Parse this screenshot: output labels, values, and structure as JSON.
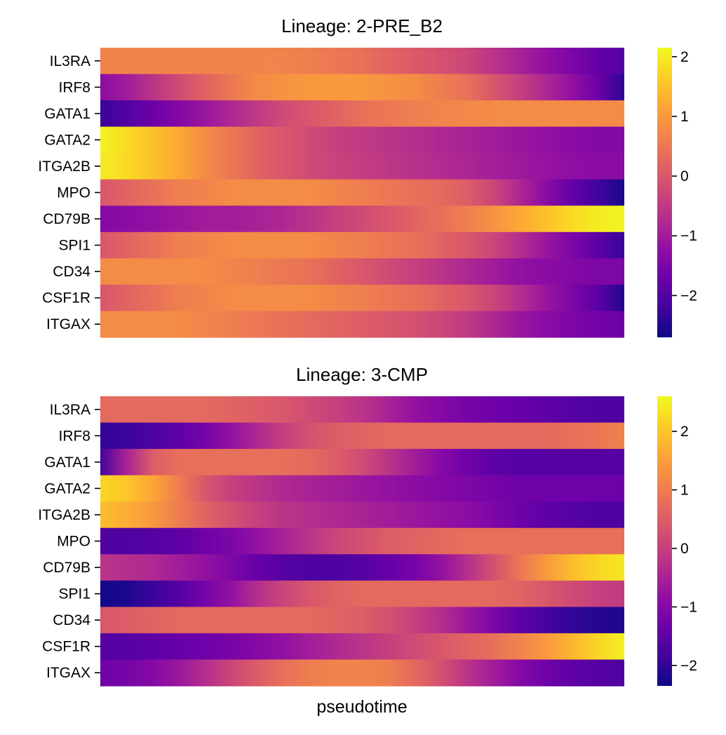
{
  "chart_data": [
    {
      "type": "heatmap",
      "title": "Lineage: 2-PRE_B2",
      "xlabel": "",
      "ylabel": "",
      "colormap": "plasma",
      "colorbar": {
        "vmin": -2.7,
        "vmax": 2.15,
        "ticks": [
          2,
          1,
          0,
          -1,
          -2
        ],
        "tick_labels": [
          "2",
          "1",
          "0",
          "−1",
          "−2"
        ]
      },
      "x": [
        0,
        0.05,
        0.1,
        0.15,
        0.2,
        0.25,
        0.3,
        0.35,
        0.4,
        0.45,
        0.5,
        0.55,
        0.6,
        0.65,
        0.7,
        0.75,
        0.8,
        0.85,
        0.9,
        0.95,
        1
      ],
      "genes": [
        "IL3RA",
        "IRF8",
        "GATA1",
        "GATA2",
        "ITGA2B",
        "MPO",
        "CD79B",
        "SPI1",
        "CD34",
        "CSF1R",
        "ITGAX"
      ],
      "values": [
        [
          0.7,
          0.7,
          0.7,
          0.7,
          0.7,
          0.7,
          0.7,
          0.68,
          0.6,
          0.5,
          0.4,
          0.2,
          0.05,
          -0.1,
          -0.3,
          -0.6,
          -0.9,
          -1.2,
          -1.5,
          -1.8,
          -2.0
        ],
        [
          -1.3,
          -1.0,
          -0.6,
          -0.2,
          0.2,
          0.5,
          0.8,
          0.9,
          1.0,
          1.0,
          1.0,
          0.9,
          0.8,
          0.6,
          0.4,
          0.0,
          -0.4,
          -0.8,
          -1.2,
          -1.7,
          -2.4
        ],
        [
          -2.3,
          -2.0,
          -1.7,
          -1.4,
          -1.1,
          -0.8,
          -0.5,
          -0.2,
          0.0,
          0.2,
          0.4,
          0.5,
          0.6,
          0.7,
          0.75,
          0.8,
          0.8,
          0.8,
          0.8,
          0.8,
          0.8
        ],
        [
          2.1,
          1.8,
          1.5,
          1.2,
          0.8,
          0.5,
          0.2,
          0.0,
          -0.2,
          -0.4,
          -0.5,
          -0.6,
          -0.7,
          -0.8,
          -0.9,
          -1.0,
          -1.1,
          -1.2,
          -1.3,
          -1.4,
          -1.4
        ],
        [
          2.0,
          1.8,
          1.5,
          1.2,
          0.8,
          0.5,
          0.2,
          0.0,
          -0.2,
          -0.35,
          -0.45,
          -0.55,
          -0.65,
          -0.75,
          -0.85,
          -0.95,
          -1.05,
          -1.15,
          -1.25,
          -1.3,
          -1.3
        ],
        [
          0.0,
          0.2,
          0.4,
          0.6,
          0.7,
          0.8,
          0.8,
          0.8,
          0.8,
          0.7,
          0.6,
          0.5,
          0.4,
          0.3,
          0.1,
          -0.3,
          -0.8,
          -1.3,
          -1.8,
          -2.2,
          -2.6
        ],
        [
          -1.4,
          -1.3,
          -1.2,
          -1.1,
          -1.0,
          -1.0,
          -0.9,
          -0.8,
          -0.6,
          -0.4,
          -0.2,
          0.0,
          0.2,
          0.4,
          0.6,
          0.9,
          1.2,
          1.5,
          1.8,
          2.0,
          2.1
        ],
        [
          0.0,
          0.2,
          0.4,
          0.6,
          0.7,
          0.8,
          0.8,
          0.8,
          0.8,
          0.7,
          0.6,
          0.5,
          0.4,
          0.2,
          0.0,
          -0.3,
          -0.7,
          -1.1,
          -1.5,
          -1.9,
          -2.3
        ],
        [
          0.8,
          0.8,
          0.8,
          0.8,
          0.8,
          0.7,
          0.6,
          0.5,
          0.4,
          0.2,
          0.0,
          -0.2,
          -0.4,
          -0.6,
          -0.8,
          -1.0,
          -1.2,
          -1.3,
          -1.4,
          -1.5,
          -1.5
        ],
        [
          0.0,
          0.2,
          0.4,
          0.6,
          0.7,
          0.8,
          0.8,
          0.8,
          0.8,
          0.7,
          0.6,
          0.5,
          0.4,
          0.2,
          0.0,
          -0.3,
          -0.7,
          -1.1,
          -1.5,
          -1.9,
          -2.5
        ],
        [
          0.8,
          0.8,
          0.8,
          0.8,
          0.7,
          0.6,
          0.5,
          0.4,
          0.3,
          0.2,
          0.1,
          0.0,
          -0.1,
          -0.3,
          -0.5,
          -0.8,
          -1.1,
          -1.3,
          -1.5,
          -1.6,
          -1.7
        ]
      ]
    },
    {
      "type": "heatmap",
      "title": "Lineage: 3-CMP",
      "xlabel": "pseudotime",
      "ylabel": "",
      "colormap": "plasma",
      "colorbar": {
        "vmin": -2.35,
        "vmax": 2.6,
        "ticks": [
          2,
          1,
          0,
          -1,
          -2
        ],
        "tick_labels": [
          "2",
          "1",
          "0",
          "−1",
          "−2"
        ]
      },
      "x": [
        0,
        0.05,
        0.1,
        0.15,
        0.2,
        0.25,
        0.3,
        0.35,
        0.4,
        0.45,
        0.5,
        0.55,
        0.6,
        0.65,
        0.7,
        0.75,
        0.8,
        0.85,
        0.9,
        0.95,
        1
      ],
      "genes": [
        "IL3RA",
        "IRF8",
        "GATA1",
        "GATA2",
        "ITGA2B",
        "MPO",
        "CD79B",
        "SPI1",
        "CD34",
        "CSF1R",
        "ITGAX"
      ],
      "values": [
        [
          0.7,
          0.7,
          0.7,
          0.7,
          0.7,
          0.6,
          0.5,
          0.4,
          0.2,
          0.0,
          -0.2,
          -0.5,
          -0.8,
          -1.0,
          -1.2,
          -1.3,
          -1.4,
          -1.5,
          -1.6,
          -1.7,
          -1.7
        ],
        [
          -2.0,
          -1.9,
          -1.7,
          -1.5,
          -1.2,
          -0.8,
          -0.4,
          0.0,
          0.3,
          0.5,
          0.6,
          0.7,
          0.7,
          0.7,
          0.7,
          0.7,
          0.7,
          0.7,
          0.8,
          0.9,
          1.1
        ],
        [
          -1.8,
          -0.5,
          0.5,
          0.8,
          0.8,
          0.8,
          0.8,
          0.8,
          0.7,
          0.5,
          0.2,
          -0.2,
          -0.6,
          -1.0,
          -1.3,
          -1.5,
          -1.6,
          -1.6,
          -1.6,
          -1.6,
          -1.6
        ],
        [
          2.2,
          2.0,
          1.6,
          1.0,
          0.4,
          0.0,
          -0.2,
          -0.4,
          -0.5,
          -0.6,
          -0.7,
          -0.8,
          -0.9,
          -1.0,
          -1.1,
          -1.2,
          -1.3,
          -1.3,
          -1.3,
          -1.3,
          -1.3
        ],
        [
          1.9,
          1.7,
          1.4,
          1.0,
          0.6,
          0.3,
          0.0,
          -0.2,
          -0.3,
          -0.4,
          -0.5,
          -0.6,
          -0.7,
          -0.8,
          -0.9,
          -1.1,
          -1.3,
          -1.5,
          -1.6,
          -1.7,
          -1.7
        ],
        [
          -1.7,
          -1.7,
          -1.6,
          -1.5,
          -1.3,
          -1.1,
          -0.8,
          -0.5,
          -0.2,
          0.1,
          0.3,
          0.5,
          0.6,
          0.7,
          0.8,
          0.8,
          0.8,
          0.8,
          0.8,
          0.8,
          0.8
        ],
        [
          -0.2,
          -0.3,
          -0.4,
          -0.6,
          -0.8,
          -1.1,
          -1.4,
          -1.6,
          -1.7,
          -1.7,
          -1.6,
          -1.4,
          -1.2,
          -0.8,
          -0.3,
          0.3,
          0.9,
          1.4,
          1.9,
          2.2,
          2.4
        ],
        [
          -2.3,
          -2.2,
          -1.9,
          -1.6,
          -1.2,
          -0.8,
          -0.3,
          0.1,
          0.4,
          0.6,
          0.7,
          0.7,
          0.7,
          0.7,
          0.7,
          0.7,
          0.6,
          0.4,
          0.2,
          0.0,
          -0.1
        ],
        [
          0.4,
          0.5,
          0.6,
          0.7,
          0.7,
          0.7,
          0.7,
          0.7,
          0.7,
          0.6,
          0.5,
          0.3,
          0.0,
          -0.3,
          -0.7,
          -1.1,
          -1.5,
          -1.8,
          -2.0,
          -2.1,
          -2.2
        ],
        [
          -1.6,
          -1.6,
          -1.5,
          -1.4,
          -1.3,
          -1.2,
          -1.0,
          -0.8,
          -0.6,
          -0.4,
          -0.2,
          0.0,
          0.2,
          0.4,
          0.6,
          0.8,
          1.1,
          1.4,
          1.8,
          2.2,
          2.5
        ],
        [
          -1.3,
          -1.2,
          -1.0,
          -0.7,
          -0.3,
          0.1,
          0.5,
          0.8,
          1.0,
          1.1,
          1.1,
          1.0,
          0.7,
          0.3,
          -0.2,
          -0.6,
          -1.0,
          -1.3,
          -1.5,
          -1.6,
          -1.7
        ]
      ]
    }
  ]
}
